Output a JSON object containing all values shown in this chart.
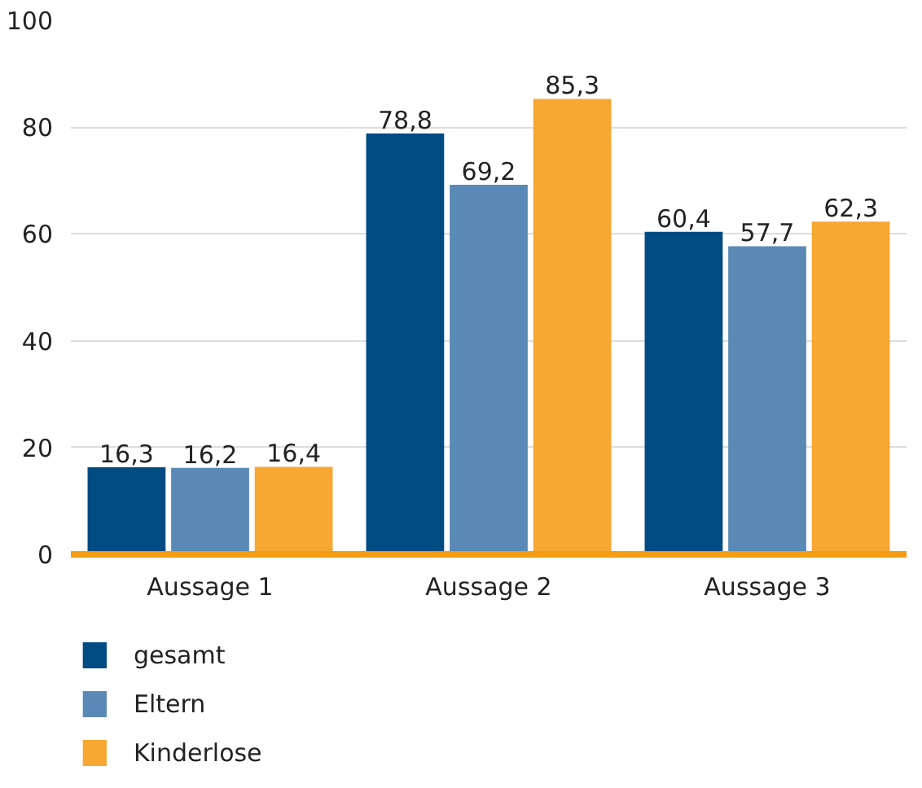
{
  "chart_data": {
    "type": "bar",
    "categories": [
      "Aussage 1",
      "Aussage 2",
      "Aussage 3"
    ],
    "series": [
      {
        "name": "gesamt",
        "color": "#004b81",
        "values": [
          16.3,
          78.8,
          60.4
        ],
        "value_labels": [
          "16,3",
          "78,8",
          "60,4"
        ]
      },
      {
        "name": "Eltern",
        "color": "#5b89b6",
        "values": [
          16.2,
          69.2,
          57.7
        ],
        "value_labels": [
          "16,2",
          "69,2",
          "57,7"
        ]
      },
      {
        "name": "Kinderlose",
        "color": "#f6a833",
        "values": [
          16.4,
          85.3,
          62.3
        ],
        "value_labels": [
          "16,4",
          "85,3",
          "62,3"
        ]
      }
    ],
    "ylim": [
      0,
      100
    ],
    "yticks": [
      0,
      20,
      40,
      60,
      80,
      100
    ],
    "grid": "y",
    "legend": "bottom"
  }
}
